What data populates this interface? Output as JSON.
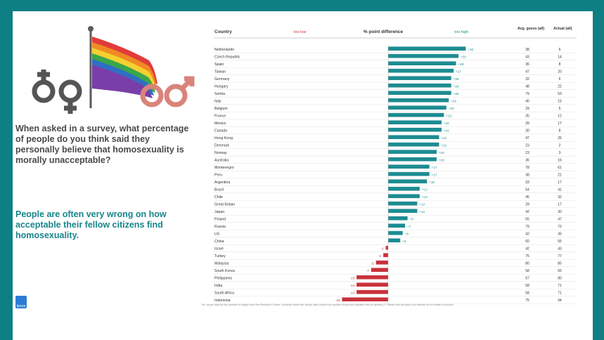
{
  "left_panel": {
    "question": "When asked in a survey, what percentage of people do you think said they personally believe that homosexuality is morally unacceptable?",
    "answer": "People are often very wrong on how acceptable their fellow citizens find homosexuality.",
    "logo_text": "Ipsos"
  },
  "colors": {
    "background": "#0e7f83",
    "positive_bar": "#1d8c92",
    "negative_bar": "#c8323c",
    "answer_text": "#17858a"
  },
  "chart_data": {
    "type": "bar",
    "orientation": "horizontal",
    "headers": {
      "country": "Country",
      "left": "too low",
      "middle": "% point difference",
      "right": "too high",
      "guess": "Avg. guess (all)",
      "actual": "Actual (all)"
    },
    "categories": [
      "Netherlands",
      "Czech Republic",
      "Spain",
      "Taiwan",
      "Germany",
      "Hungary",
      "Serbia",
      "Italy",
      "Belgium",
      "France",
      "Mexico",
      "Canada",
      "Hong Kong",
      "Denmark",
      "Norway",
      "Australia",
      "Montenegro",
      "Peru",
      "Argentina",
      "Brazil",
      "Chile",
      "Great Britain",
      "Japan",
      "Poland",
      "Russia",
      "US",
      "China",
      "Israel",
      "Turkey",
      "Malaysia",
      "South Korea",
      "Philippines",
      "India",
      "South Africa",
      "Indonesia"
    ],
    "values": [
      32,
      29,
      28,
      27,
      26,
      26,
      26,
      25,
      24,
      23,
      22,
      22,
      21,
      21,
      20,
      20,
      17,
      17,
      16,
      13,
      13,
      12,
      12,
      8,
      7,
      6,
      5,
      -1,
      -2,
      -5,
      -7,
      -13,
      -13,
      -13,
      -19
    ],
    "guess": [
      38,
      43,
      36,
      47,
      32,
      48,
      79,
      40,
      29,
      35,
      39,
      30,
      47,
      23,
      23,
      36,
      78,
      38,
      33,
      54,
      45,
      29,
      42,
      55,
      79,
      42,
      60,
      42,
      75,
      80,
      58,
      67,
      58,
      58,
      75
    ],
    "actual": [
      6,
      14,
      8,
      20,
      6,
      22,
      53,
      15,
      5,
      12,
      17,
      8,
      26,
      2,
      3,
      16,
      61,
      21,
      17,
      41,
      32,
      17,
      30,
      47,
      72,
      36,
      55,
      43,
      77,
      85,
      65,
      80,
      71,
      71,
      94
    ],
    "xlim": [
      -25,
      40
    ],
    "footnote": "The 'actual' data for this question is largely from Pew Research Center. Countries where the 'actual' data comes from another source are indicated with an asterisk (*). Please see the ipsos.com website for full details of sources."
  }
}
